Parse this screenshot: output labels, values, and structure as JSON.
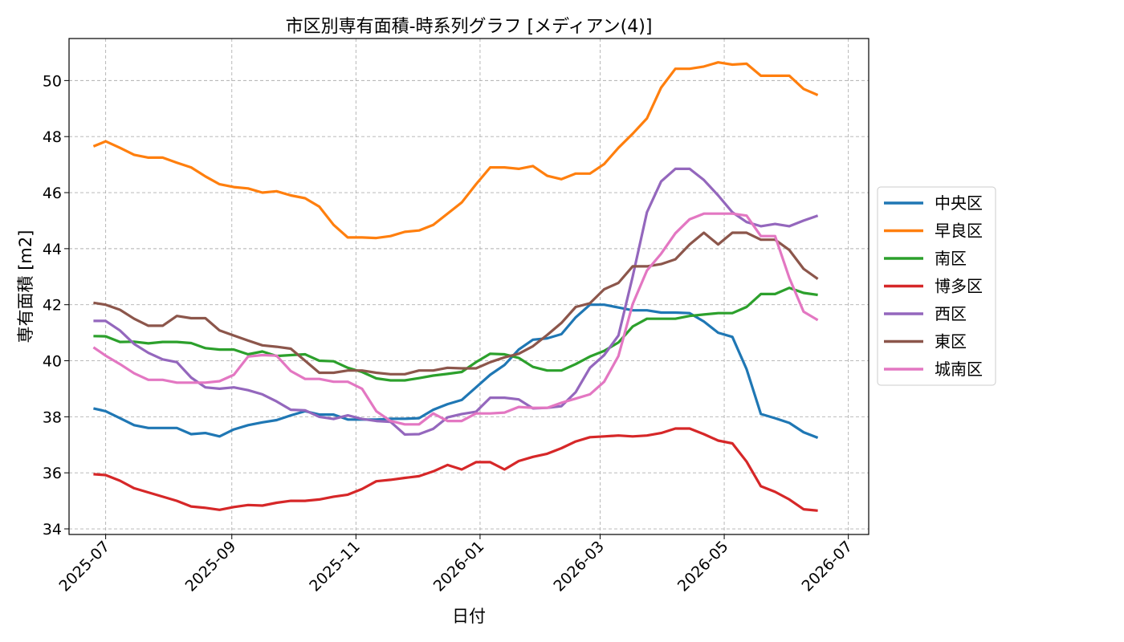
{
  "chart_data": {
    "type": "line",
    "title": "市区別専有面積-時系列グラフ [メディアン(4)]",
    "xlabel": "日付",
    "ylabel": "専有面積 [m2]",
    "ylim": [
      33.8,
      51.5
    ],
    "xlim": [
      "2025-06-13",
      "2026-07-11"
    ],
    "yticks": [
      34,
      36,
      38,
      40,
      42,
      44,
      46,
      48,
      50
    ],
    "xticks": [
      "2025-07",
      "2025-09",
      "2025-11",
      "2026-01",
      "2026-03",
      "2026-05",
      "2026-07"
    ],
    "grid": true,
    "legend_position": "right-center",
    "x": [
      "2025-06-25",
      "2025-07-01",
      "2025-07-08",
      "2025-07-15",
      "2025-07-22",
      "2025-07-29",
      "2025-08-05",
      "2025-08-12",
      "2025-08-19",
      "2025-08-26",
      "2025-09-02",
      "2025-09-09",
      "2025-09-16",
      "2025-09-23",
      "2025-09-30",
      "2025-10-07",
      "2025-10-14",
      "2025-10-21",
      "2025-10-28",
      "2025-11-04",
      "2025-11-11",
      "2025-11-18",
      "2025-11-25",
      "2025-12-02",
      "2025-12-09",
      "2025-12-16",
      "2025-12-23",
      "2025-12-30",
      "2026-01-06",
      "2026-01-13",
      "2026-01-20",
      "2026-01-27",
      "2026-02-03",
      "2026-02-10",
      "2026-02-17",
      "2026-02-24",
      "2026-03-03",
      "2026-03-10",
      "2026-03-17",
      "2026-03-24",
      "2026-03-31",
      "2026-04-07",
      "2026-04-14",
      "2026-04-21",
      "2026-04-28",
      "2026-05-05",
      "2026-05-12",
      "2026-05-19",
      "2026-05-26",
      "2026-06-02",
      "2026-06-09",
      "2026-06-16"
    ],
    "series": [
      {
        "name": "中央区",
        "color": "#1f77b4",
        "values": [
          38.3,
          38.2,
          37.95,
          37.7,
          37.6,
          37.6,
          37.6,
          37.38,
          37.42,
          37.3,
          37.55,
          37.7,
          37.8,
          37.88,
          38.05,
          38.2,
          38.08,
          38.08,
          37.9,
          37.9,
          37.9,
          37.93,
          37.93,
          37.95,
          38.25,
          38.45,
          38.6,
          39.05,
          39.5,
          39.85,
          40.4,
          40.75,
          40.8,
          40.95,
          41.55,
          42.0,
          42.0,
          41.9,
          41.8,
          41.8,
          41.72,
          41.72,
          41.7,
          41.4,
          41.0,
          40.85,
          39.7,
          38.1,
          37.95,
          37.78,
          37.45,
          37.25
        ]
      },
      {
        "name": "早良区",
        "color": "#ff7f0e",
        "values": [
          47.65,
          47.83,
          47.6,
          47.35,
          47.25,
          47.25,
          47.07,
          46.9,
          46.58,
          46.3,
          46.2,
          46.15,
          46.0,
          46.05,
          45.9,
          45.8,
          45.5,
          44.85,
          44.4,
          44.4,
          44.38,
          44.45,
          44.6,
          44.65,
          44.85,
          45.25,
          45.65,
          46.3,
          46.9,
          46.9,
          46.85,
          46.95,
          46.6,
          46.48,
          46.68,
          46.68,
          47.02,
          47.6,
          48.1,
          48.65,
          49.75,
          50.42,
          50.42,
          50.5,
          50.65,
          50.57,
          50.6,
          50.17,
          50.17,
          50.17,
          49.7,
          49.48
        ]
      },
      {
        "name": "南区",
        "color": "#2ca02c",
        "values": [
          40.88,
          40.87,
          40.67,
          40.68,
          40.62,
          40.67,
          40.67,
          40.63,
          40.45,
          40.4,
          40.4,
          40.23,
          40.33,
          40.17,
          40.2,
          40.23,
          40.0,
          39.98,
          39.75,
          39.6,
          39.37,
          39.3,
          39.3,
          39.38,
          39.47,
          39.53,
          39.6,
          39.95,
          40.25,
          40.23,
          40.1,
          39.78,
          39.65,
          39.65,
          39.88,
          40.15,
          40.35,
          40.65,
          41.22,
          41.5,
          41.5,
          41.5,
          41.6,
          41.65,
          41.7,
          41.7,
          41.92,
          42.38,
          42.38,
          42.6,
          42.42,
          42.35
        ]
      },
      {
        "name": "博多区",
        "color": "#d62728",
        "values": [
          35.95,
          35.92,
          35.72,
          35.45,
          35.3,
          35.15,
          35.0,
          34.8,
          34.75,
          34.68,
          34.78,
          34.85,
          34.83,
          34.93,
          35.0,
          35.0,
          35.05,
          35.15,
          35.22,
          35.42,
          35.7,
          35.75,
          35.82,
          35.88,
          36.05,
          36.28,
          36.12,
          36.38,
          36.38,
          36.12,
          36.42,
          36.57,
          36.68,
          36.88,
          37.12,
          37.27,
          37.3,
          37.33,
          37.3,
          37.33,
          37.42,
          37.58,
          37.58,
          37.38,
          37.15,
          37.05,
          36.4,
          35.52,
          35.32,
          35.05,
          34.7,
          34.65
        ]
      },
      {
        "name": "西区",
        "color": "#9467bd",
        "values": [
          41.42,
          41.42,
          41.08,
          40.6,
          40.28,
          40.05,
          39.95,
          39.4,
          39.05,
          39.0,
          39.05,
          38.95,
          38.8,
          38.55,
          38.25,
          38.23,
          38.0,
          37.92,
          38.05,
          37.92,
          37.85,
          37.82,
          37.37,
          37.38,
          37.57,
          37.98,
          38.1,
          38.18,
          38.68,
          38.68,
          38.62,
          38.3,
          38.32,
          38.38,
          38.88,
          39.75,
          40.2,
          40.9,
          43.0,
          45.3,
          46.4,
          46.85,
          46.85,
          46.45,
          45.9,
          45.3,
          44.95,
          44.8,
          44.88,
          44.8,
          45.0,
          45.18
        ]
      },
      {
        "name": "東区",
        "color": "#8c564b",
        "values": [
          42.07,
          42.0,
          41.82,
          41.5,
          41.25,
          41.25,
          41.6,
          41.52,
          41.52,
          41.08,
          40.9,
          40.72,
          40.55,
          40.5,
          40.43,
          40.0,
          39.57,
          39.57,
          39.65,
          39.65,
          39.57,
          39.52,
          39.52,
          39.65,
          39.65,
          39.75,
          39.73,
          39.73,
          39.95,
          40.12,
          40.25,
          40.52,
          40.92,
          41.35,
          41.92,
          42.05,
          42.55,
          42.78,
          43.37,
          43.37,
          43.45,
          43.62,
          44.15,
          44.57,
          44.15,
          44.57,
          44.57,
          44.32,
          44.32,
          43.95,
          43.28,
          42.92
        ]
      },
      {
        "name": "城南区",
        "color": "#e377c2",
        "values": [
          40.48,
          40.18,
          39.88,
          39.55,
          39.32,
          39.32,
          39.22,
          39.22,
          39.22,
          39.27,
          39.5,
          40.15,
          40.2,
          40.18,
          39.63,
          39.35,
          39.35,
          39.25,
          39.25,
          39.0,
          38.2,
          37.85,
          37.73,
          37.73,
          38.12,
          37.85,
          37.85,
          38.12,
          38.12,
          38.15,
          38.35,
          38.32,
          38.32,
          38.5,
          38.65,
          38.8,
          39.25,
          40.17,
          42.02,
          43.22,
          43.82,
          44.55,
          45.05,
          45.25,
          45.25,
          45.25,
          45.18,
          44.45,
          44.45,
          42.95,
          41.75,
          41.45
        ]
      }
    ]
  }
}
